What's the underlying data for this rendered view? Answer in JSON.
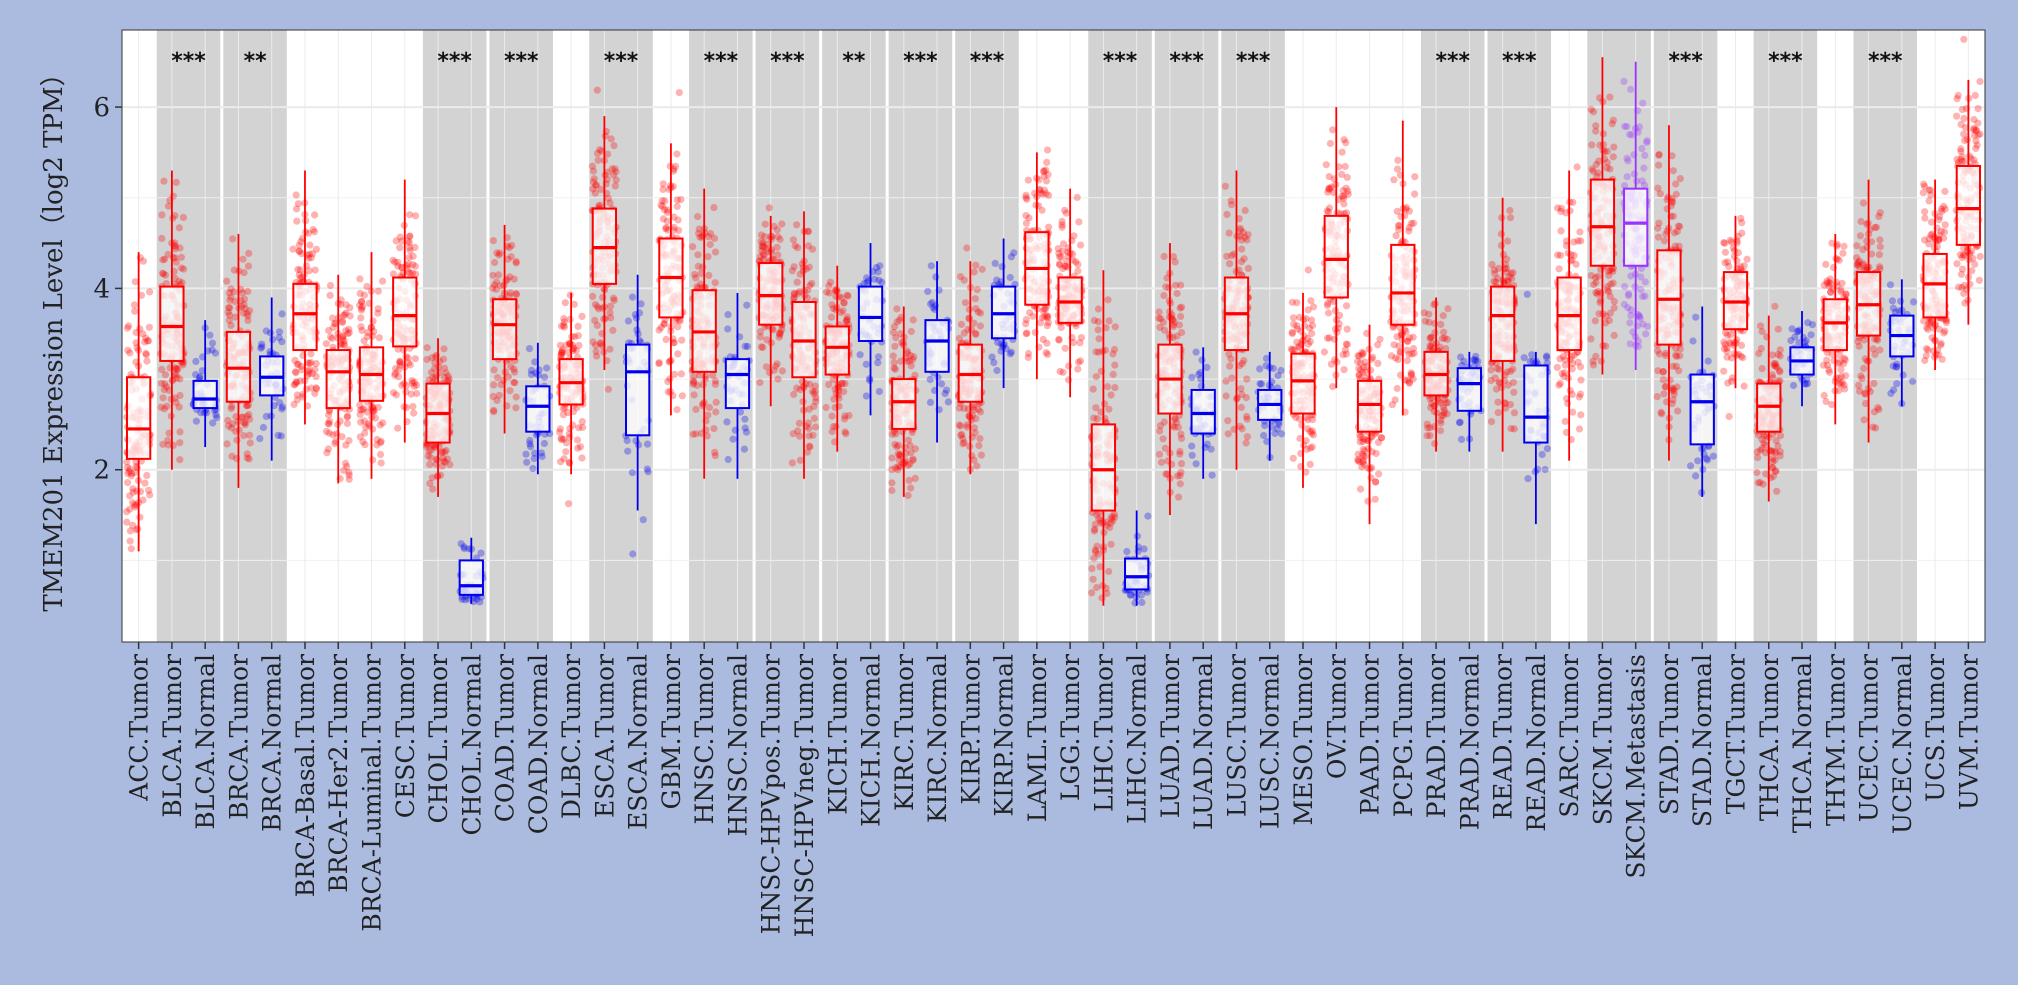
{
  "chart_data": {
    "type": "box",
    "title": "",
    "xlabel": "",
    "ylabel": "TMEM201 Expression Level（log2 TPM）",
    "ylim": [
      0.1,
      6.85
    ],
    "yticks": [
      2,
      4,
      6
    ],
    "grid": true,
    "colors": {
      "tumor": "#ff0000",
      "normal": "#0000ee",
      "metastasis": "#9933ff",
      "shade": "#d3d3d3",
      "panel": "#ffffff"
    },
    "groups": [
      {
        "pair": [
          "ACC.Tumor"
        ],
        "sig": "",
        "shaded": false
      },
      {
        "pair": [
          "BLCA.Tumor",
          "BLCA.Normal"
        ],
        "sig": "***",
        "shaded": true
      },
      {
        "pair": [
          "BRCA.Tumor",
          "BRCA.Normal"
        ],
        "sig": "**",
        "shaded": true
      },
      {
        "pair": [
          "BRCA-Basal.Tumor"
        ],
        "sig": "",
        "shaded": false
      },
      {
        "pair": [
          "BRCA-Her2.Tumor"
        ],
        "sig": "",
        "shaded": false
      },
      {
        "pair": [
          "BRCA-Luminal.Tumor"
        ],
        "sig": "",
        "shaded": false
      },
      {
        "pair": [
          "CESC.Tumor"
        ],
        "sig": "",
        "shaded": false
      },
      {
        "pair": [
          "CHOL.Tumor",
          "CHOL.Normal"
        ],
        "sig": "***",
        "shaded": true
      },
      {
        "pair": [
          "COAD.Tumor",
          "COAD.Normal"
        ],
        "sig": "***",
        "shaded": true
      },
      {
        "pair": [
          "DLBC.Tumor"
        ],
        "sig": "",
        "shaded": false
      },
      {
        "pair": [
          "ESCA.Tumor",
          "ESCA.Normal"
        ],
        "sig": "***",
        "shaded": true
      },
      {
        "pair": [
          "GBM.Tumor"
        ],
        "sig": "",
        "shaded": false
      },
      {
        "pair": [
          "HNSC.Tumor",
          "HNSC.Normal"
        ],
        "sig": "***",
        "shaded": true
      },
      {
        "pair": [
          "HNSC-HPVpos.Tumor",
          "HNSC-HPVneg.Tumor"
        ],
        "sig": "***",
        "shaded": true
      },
      {
        "pair": [
          "KICH.Tumor",
          "KICH.Normal"
        ],
        "sig": "**",
        "shaded": true
      },
      {
        "pair": [
          "KIRC.Tumor",
          "KIRC.Normal"
        ],
        "sig": "***",
        "shaded": true
      },
      {
        "pair": [
          "KIRP.Tumor",
          "KIRP.Normal"
        ],
        "sig": "***",
        "shaded": true
      },
      {
        "pair": [
          "LAML.Tumor"
        ],
        "sig": "",
        "shaded": false
      },
      {
        "pair": [
          "LGG.Tumor"
        ],
        "sig": "",
        "shaded": false
      },
      {
        "pair": [
          "LIHC.Tumor",
          "LIHC.Normal"
        ],
        "sig": "***",
        "shaded": true
      },
      {
        "pair": [
          "LUAD.Tumor",
          "LUAD.Normal"
        ],
        "sig": "***",
        "shaded": true
      },
      {
        "pair": [
          "LUSC.Tumor",
          "LUSC.Normal"
        ],
        "sig": "***",
        "shaded": true
      },
      {
        "pair": [
          "MESO.Tumor"
        ],
        "sig": "",
        "shaded": false
      },
      {
        "pair": [
          "OV.Tumor"
        ],
        "sig": "",
        "shaded": false
      },
      {
        "pair": [
          "PAAD.Tumor"
        ],
        "sig": "",
        "shaded": false
      },
      {
        "pair": [
          "PCPG.Tumor"
        ],
        "sig": "",
        "shaded": false
      },
      {
        "pair": [
          "PRAD.Tumor",
          "PRAD.Normal"
        ],
        "sig": "***",
        "shaded": true
      },
      {
        "pair": [
          "READ.Tumor",
          "READ.Normal"
        ],
        "sig": "***",
        "shaded": true
      },
      {
        "pair": [
          "SARC.Tumor"
        ],
        "sig": "",
        "shaded": false
      },
      {
        "pair": [
          "SKCM.Tumor",
          "SKCM.Metastasis"
        ],
        "sig": "",
        "shaded": true
      },
      {
        "pair": [
          "STAD.Tumor",
          "STAD.Normal"
        ],
        "sig": "***",
        "shaded": true
      },
      {
        "pair": [
          "TGCT.Tumor"
        ],
        "sig": "",
        "shaded": false
      },
      {
        "pair": [
          "THCA.Tumor",
          "THCA.Normal"
        ],
        "sig": "***",
        "shaded": true
      },
      {
        "pair": [
          "THYM.Tumor"
        ],
        "sig": "",
        "shaded": false
      },
      {
        "pair": [
          "UCEC.Tumor",
          "UCEC.Normal"
        ],
        "sig": "***",
        "shaded": true
      },
      {
        "pair": [
          "UCS.Tumor"
        ],
        "sig": "",
        "shaded": false
      },
      {
        "pair": [
          "UVM.Tumor"
        ],
        "sig": "",
        "shaded": false
      }
    ],
    "series": [
      {
        "label": "ACC.Tumor",
        "kind": "tumor",
        "q1": 2.12,
        "median": 2.45,
        "q3": 3.02,
        "lo": 1.1,
        "hi": 4.4
      },
      {
        "label": "BLCA.Tumor",
        "kind": "tumor",
        "q1": 3.2,
        "median": 3.58,
        "q3": 4.02,
        "lo": 2.0,
        "hi": 5.3
      },
      {
        "label": "BLCA.Normal",
        "kind": "normal",
        "q1": 2.68,
        "median": 2.78,
        "q3": 2.98,
        "lo": 2.25,
        "hi": 3.65
      },
      {
        "label": "BRCA.Tumor",
        "kind": "tumor",
        "q1": 2.75,
        "median": 3.12,
        "q3": 3.52,
        "lo": 1.8,
        "hi": 4.6
      },
      {
        "label": "BRCA.Normal",
        "kind": "normal",
        "q1": 2.82,
        "median": 3.02,
        "q3": 3.25,
        "lo": 2.1,
        "hi": 3.9
      },
      {
        "label": "BRCA-Basal.Tumor",
        "kind": "tumor",
        "q1": 3.32,
        "median": 3.72,
        "q3": 4.05,
        "lo": 2.5,
        "hi": 5.3
      },
      {
        "label": "BRCA-Her2.Tumor",
        "kind": "tumor",
        "q1": 2.68,
        "median": 3.08,
        "q3": 3.32,
        "lo": 1.85,
        "hi": 4.15
      },
      {
        "label": "BRCA-Luminal.Tumor",
        "kind": "tumor",
        "q1": 2.76,
        "median": 3.05,
        "q3": 3.35,
        "lo": 1.9,
        "hi": 4.4
      },
      {
        "label": "CESC.Tumor",
        "kind": "tumor",
        "q1": 3.36,
        "median": 3.7,
        "q3": 4.12,
        "lo": 2.3,
        "hi": 5.2
      },
      {
        "label": "CHOL.Tumor",
        "kind": "tumor",
        "q1": 2.3,
        "median": 2.62,
        "q3": 2.95,
        "lo": 1.7,
        "hi": 3.45
      },
      {
        "label": "CHOL.Normal",
        "kind": "normal",
        "q1": 0.62,
        "median": 0.72,
        "q3": 1.0,
        "lo": 0.52,
        "hi": 1.25
      },
      {
        "label": "COAD.Tumor",
        "kind": "tumor",
        "q1": 3.22,
        "median": 3.6,
        "q3": 3.88,
        "lo": 2.4,
        "hi": 4.7
      },
      {
        "label": "COAD.Normal",
        "kind": "normal",
        "q1": 2.42,
        "median": 2.7,
        "q3": 2.92,
        "lo": 1.95,
        "hi": 3.4
      },
      {
        "label": "DLBC.Tumor",
        "kind": "tumor",
        "q1": 2.72,
        "median": 2.96,
        "q3": 3.22,
        "lo": 1.95,
        "hi": 3.95
      },
      {
        "label": "ESCA.Tumor",
        "kind": "tumor",
        "q1": 4.05,
        "median": 4.45,
        "q3": 4.88,
        "lo": 3.1,
        "hi": 5.9
      },
      {
        "label": "ESCA.Normal",
        "kind": "normal",
        "q1": 2.38,
        "median": 3.08,
        "q3": 3.38,
        "lo": 1.55,
        "hi": 4.15
      },
      {
        "label": "GBM.Tumor",
        "kind": "tumor",
        "q1": 3.68,
        "median": 4.12,
        "q3": 4.55,
        "lo": 2.6,
        "hi": 5.6
      },
      {
        "label": "HNSC.Tumor",
        "kind": "tumor",
        "q1": 3.08,
        "median": 3.52,
        "q3": 3.98,
        "lo": 1.9,
        "hi": 5.1
      },
      {
        "label": "HNSC.Normal",
        "kind": "normal",
        "q1": 2.68,
        "median": 3.05,
        "q3": 3.22,
        "lo": 1.9,
        "hi": 3.95
      },
      {
        "label": "HNSC-HPVpos.Tumor",
        "kind": "tumor",
        "q1": 3.6,
        "median": 3.92,
        "q3": 4.28,
        "lo": 2.7,
        "hi": 4.8
      },
      {
        "label": "HNSC-HPVneg.Tumor",
        "kind": "tumor",
        "q1": 3.02,
        "median": 3.42,
        "q3": 3.85,
        "lo": 1.9,
        "hi": 4.85
      },
      {
        "label": "KICH.Tumor",
        "kind": "tumor",
        "q1": 3.05,
        "median": 3.35,
        "q3": 3.58,
        "lo": 2.2,
        "hi": 4.25
      },
      {
        "label": "KICH.Normal",
        "kind": "normal",
        "q1": 3.42,
        "median": 3.68,
        "q3": 4.02,
        "lo": 2.6,
        "hi": 4.5
      },
      {
        "label": "KIRC.Tumor",
        "kind": "tumor",
        "q1": 2.45,
        "median": 2.75,
        "q3": 3.0,
        "lo": 1.7,
        "hi": 3.8
      },
      {
        "label": "KIRC.Normal",
        "kind": "normal",
        "q1": 3.08,
        "median": 3.42,
        "q3": 3.65,
        "lo": 2.3,
        "hi": 4.3
      },
      {
        "label": "KIRP.Tumor",
        "kind": "tumor",
        "q1": 2.75,
        "median": 3.05,
        "q3": 3.38,
        "lo": 1.95,
        "hi": 4.3
      },
      {
        "label": "KIRP.Normal",
        "kind": "normal",
        "q1": 3.45,
        "median": 3.72,
        "q3": 4.02,
        "lo": 2.9,
        "hi": 4.55
      },
      {
        "label": "LAML.Tumor",
        "kind": "tumor",
        "q1": 3.82,
        "median": 4.22,
        "q3": 4.62,
        "lo": 3.0,
        "hi": 5.5
      },
      {
        "label": "LGG.Tumor",
        "kind": "tumor",
        "q1": 3.62,
        "median": 3.85,
        "q3": 4.12,
        "lo": 2.8,
        "hi": 5.1
      },
      {
        "label": "LIHC.Tumor",
        "kind": "tumor",
        "q1": 1.55,
        "median": 2.0,
        "q3": 2.5,
        "lo": 0.5,
        "hi": 4.2
      },
      {
        "label": "LIHC.Normal",
        "kind": "normal",
        "q1": 0.68,
        "median": 0.82,
        "q3": 1.02,
        "lo": 0.5,
        "hi": 1.55
      },
      {
        "label": "LUAD.Tumor",
        "kind": "tumor",
        "q1": 2.62,
        "median": 3.0,
        "q3": 3.38,
        "lo": 1.5,
        "hi": 4.5
      },
      {
        "label": "LUAD.Normal",
        "kind": "normal",
        "q1": 2.4,
        "median": 2.62,
        "q3": 2.88,
        "lo": 1.9,
        "hi": 3.35
      },
      {
        "label": "LUSC.Tumor",
        "kind": "tumor",
        "q1": 3.32,
        "median": 3.72,
        "q3": 4.12,
        "lo": 2.0,
        "hi": 5.3
      },
      {
        "label": "LUSC.Normal",
        "kind": "normal",
        "q1": 2.55,
        "median": 2.72,
        "q3": 2.88,
        "lo": 2.1,
        "hi": 3.3
      },
      {
        "label": "MESO.Tumor",
        "kind": "tumor",
        "q1": 2.62,
        "median": 2.98,
        "q3": 3.28,
        "lo": 1.8,
        "hi": 3.95
      },
      {
        "label": "OV.Tumor",
        "kind": "tumor",
        "q1": 3.9,
        "median": 4.32,
        "q3": 4.8,
        "lo": 2.9,
        "hi": 6.0
      },
      {
        "label": "PAAD.Tumor",
        "kind": "tumor",
        "q1": 2.42,
        "median": 2.72,
        "q3": 2.98,
        "lo": 1.4,
        "hi": 3.6
      },
      {
        "label": "PCPG.Tumor",
        "kind": "tumor",
        "q1": 3.6,
        "median": 3.95,
        "q3": 4.48,
        "lo": 2.6,
        "hi": 5.85
      },
      {
        "label": "PRAD.Tumor",
        "kind": "tumor",
        "q1": 2.82,
        "median": 3.05,
        "q3": 3.3,
        "lo": 2.2,
        "hi": 3.9
      },
      {
        "label": "PRAD.Normal",
        "kind": "normal",
        "q1": 2.65,
        "median": 2.95,
        "q3": 3.12,
        "lo": 2.2,
        "hi": 3.3
      },
      {
        "label": "READ.Tumor",
        "kind": "tumor",
        "q1": 3.2,
        "median": 3.7,
        "q3": 4.02,
        "lo": 2.2,
        "hi": 5.0
      },
      {
        "label": "READ.Normal",
        "kind": "normal",
        "q1": 2.3,
        "median": 2.58,
        "q3": 3.15,
        "lo": 1.4,
        "hi": 3.3
      },
      {
        "label": "SARC.Tumor",
        "kind": "tumor",
        "q1": 3.32,
        "median": 3.7,
        "q3": 4.12,
        "lo": 2.1,
        "hi": 5.3
      },
      {
        "label": "SKCM.Tumor",
        "kind": "tumor",
        "q1": 4.25,
        "median": 4.68,
        "q3": 5.2,
        "lo": 3.05,
        "hi": 6.55
      },
      {
        "label": "SKCM.Metastasis",
        "kind": "metastasis",
        "q1": 4.25,
        "median": 4.72,
        "q3": 5.1,
        "lo": 3.1,
        "hi": 6.5
      },
      {
        "label": "STAD.Tumor",
        "kind": "tumor",
        "q1": 3.38,
        "median": 3.88,
        "q3": 4.42,
        "lo": 2.1,
        "hi": 5.8
      },
      {
        "label": "STAD.Normal",
        "kind": "normal",
        "q1": 2.28,
        "median": 2.75,
        "q3": 3.05,
        "lo": 1.7,
        "hi": 3.8
      },
      {
        "label": "TGCT.Tumor",
        "kind": "tumor",
        "q1": 3.55,
        "median": 3.85,
        "q3": 4.18,
        "lo": 2.9,
        "hi": 4.8
      },
      {
        "label": "THCA.Tumor",
        "kind": "tumor",
        "q1": 2.42,
        "median": 2.7,
        "q3": 2.95,
        "lo": 1.65,
        "hi": 3.7
      },
      {
        "label": "THCA.Normal",
        "kind": "normal",
        "q1": 3.05,
        "median": 3.2,
        "q3": 3.35,
        "lo": 2.7,
        "hi": 3.75
      },
      {
        "label": "THYM.Tumor",
        "kind": "tumor",
        "q1": 3.32,
        "median": 3.62,
        "q3": 3.88,
        "lo": 2.5,
        "hi": 4.6
      },
      {
        "label": "UCEC.Tumor",
        "kind": "tumor",
        "q1": 3.48,
        "median": 3.82,
        "q3": 4.18,
        "lo": 2.3,
        "hi": 5.2
      },
      {
        "label": "UCEC.Normal",
        "kind": "normal",
        "q1": 3.25,
        "median": 3.48,
        "q3": 3.7,
        "lo": 2.7,
        "hi": 4.1
      },
      {
        "label": "UCS.Tumor",
        "kind": "tumor",
        "q1": 3.68,
        "median": 4.05,
        "q3": 4.38,
        "lo": 3.1,
        "hi": 5.2
      },
      {
        "label": "UVM.Tumor",
        "kind": "tumor",
        "q1": 4.48,
        "median": 4.88,
        "q3": 5.35,
        "lo": 3.6,
        "hi": 6.3
      }
    ]
  }
}
